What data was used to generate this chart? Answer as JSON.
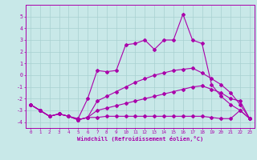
{
  "title": "",
  "xlabel": "Windchill (Refroidissement éolien,°C)",
  "bg_color": "#c8e8e8",
  "grid_color": "#a8d0d0",
  "line_color": "#aa00aa",
  "x": [
    0,
    1,
    2,
    3,
    4,
    5,
    6,
    7,
    8,
    9,
    10,
    11,
    12,
    13,
    14,
    15,
    16,
    17,
    18,
    19,
    20,
    21,
    22,
    23
  ],
  "line1": [
    -2.5,
    -3.0,
    -3.5,
    -3.3,
    -3.5,
    -3.7,
    -2.0,
    0.4,
    0.3,
    0.4,
    2.6,
    2.7,
    3.0,
    2.2,
    3.0,
    3.0,
    5.2,
    3.0,
    2.7,
    -0.8,
    -1.8,
    -2.5,
    -3.0,
    -3.7
  ],
  "line2": [
    -2.5,
    -3.0,
    -3.5,
    -3.3,
    -3.5,
    -3.8,
    -3.6,
    -3.6,
    -3.5,
    -3.5,
    -3.5,
    -3.5,
    -3.5,
    -3.5,
    -3.5,
    -3.5,
    -3.5,
    -3.5,
    -3.5,
    -3.6,
    -3.7,
    -3.7,
    -3.0,
    -3.7
  ],
  "line3": [
    -2.5,
    -3.0,
    -3.5,
    -3.3,
    -3.5,
    -3.8,
    -3.6,
    -3.0,
    -2.8,
    -2.6,
    -2.4,
    -2.2,
    -2.0,
    -1.8,
    -1.6,
    -1.4,
    -1.2,
    -1.0,
    -0.9,
    -1.2,
    -1.5,
    -2.0,
    -2.2,
    -3.7
  ],
  "line4": [
    -2.5,
    -3.0,
    -3.5,
    -3.3,
    -3.5,
    -3.8,
    -3.6,
    -2.2,
    -1.8,
    -1.4,
    -1.0,
    -0.6,
    -0.3,
    0.0,
    0.2,
    0.4,
    0.5,
    0.6,
    0.2,
    -0.3,
    -0.8,
    -1.5,
    -2.5,
    -3.7
  ],
  "ylim": [
    -4.5,
    6.0
  ],
  "yticks": [
    -4,
    -3,
    -2,
    -1,
    0,
    1,
    2,
    3,
    4,
    5
  ],
  "xlim": [
    -0.5,
    23.5
  ]
}
